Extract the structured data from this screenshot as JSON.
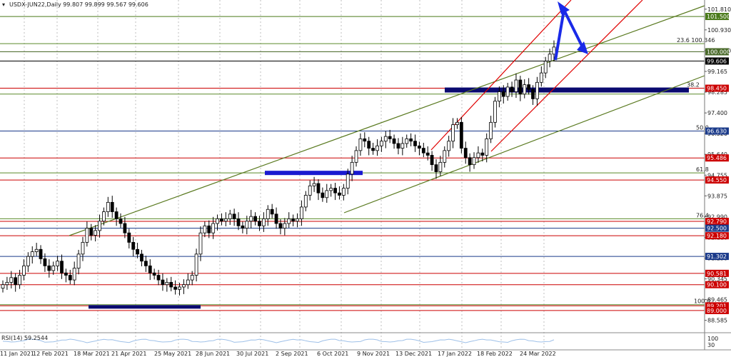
{
  "header": {
    "symbol_info": "USDX-JUN22,Daily  99.807 99.899 99.567 99.606"
  },
  "indicator": {
    "label": "RSI(14) 59.2544",
    "levels": [
      "100",
      "30"
    ]
  },
  "chart_data": {
    "type": "candlestick",
    "symbol": "USDX-JUN22",
    "timeframe": "Daily",
    "ohlc_last": {
      "open": 99.807,
      "high": 99.899,
      "low": 99.567,
      "close": 99.606
    },
    "x_tick_labels": [
      "11 Jan 2021",
      "12 Feb 2021",
      "18 Mar 2021",
      "21 Apr 2021",
      "25 May 2021",
      "28 Jun 2021",
      "30 Jul 2021",
      "2 Sep 2021",
      "6 Oct 2021",
      "9 Nov 2021",
      "13 Dec 2021",
      "17 Jan 2022",
      "18 Feb 2022",
      "24 Mar 2022"
    ],
    "y_tick_labels": [
      "101.810",
      "100.930",
      "100.050",
      "99.165",
      "98.285",
      "97.400",
      "96.520",
      "95.640",
      "94.755",
      "93.875",
      "92.990",
      "92.110",
      "91.230",
      "90.345",
      "89.465",
      "88.585"
    ],
    "ylim": [
      88.3,
      102.2
    ],
    "close_series": [
      90.1,
      90.2,
      90.4,
      90.1,
      90.5,
      90.9,
      91.3,
      91.5,
      91.6,
      91.2,
      90.9,
      90.7,
      90.9,
      91.1,
      90.6,
      90.5,
      90.3,
      90.8,
      91.4,
      91.9,
      92.5,
      92.2,
      92.4,
      92.8,
      93.2,
      93.6,
      93.2,
      92.9,
      92.7,
      92.3,
      91.9,
      91.6,
      91.4,
      91.1,
      90.9,
      90.6,
      90.5,
      90.3,
      90.1,
      90.2,
      90.0,
      89.9,
      90.0,
      90.1,
      90.3,
      90.5,
      91.4,
      92.3,
      92.6,
      92.3,
      92.7,
      92.9,
      92.8,
      92.9,
      93.1,
      92.9,
      92.6,
      92.5,
      92.8,
      93.0,
      92.8,
      92.6,
      92.9,
      93.3,
      93.1,
      92.7,
      92.5,
      92.7,
      92.9,
      92.8,
      92.9,
      93.4,
      93.9,
      94.3,
      94.4,
      94.0,
      93.8,
      94.1,
      94.2,
      94.0,
      93.9,
      94.2,
      94.8,
      95.3,
      95.8,
      96.3,
      96.2,
      95.9,
      95.8,
      96.0,
      96.2,
      96.4,
      96.3,
      96.1,
      95.9,
      96.1,
      96.3,
      96.2,
      96.0,
      95.9,
      95.7,
      95.6,
      95.2,
      94.9,
      95.3,
      95.8,
      96.2,
      96.9,
      97.0,
      95.9,
      95.5,
      95.2,
      95.5,
      95.7,
      95.6,
      96.3,
      97.0,
      97.9,
      98.3,
      98.1,
      98.5,
      98.3,
      98.8,
      98.2,
      98.6,
      98.4,
      98.0,
      98.7,
      99.1,
      99.6,
      99.9,
      100.2
    ],
    "horizontal_levels": [
      {
        "label": "101.500",
        "value": 101.5,
        "color": "#4a7a1a",
        "boxed": true
      },
      {
        "label": "100.000",
        "value": 100.0,
        "color": "#4a6a2a",
        "boxed": true
      },
      {
        "label": "99.606",
        "value": 99.606,
        "color": "#000000",
        "boxed": true
      },
      {
        "label": "98.450",
        "value": 98.45,
        "color": "#cc0000",
        "boxed": true
      },
      {
        "label": "96.630",
        "value": 96.63,
        "color": "#1a3a8a",
        "boxed": true
      },
      {
        "label": "95.486",
        "value": 95.486,
        "color": "#cc0000",
        "boxed": true
      },
      {
        "label": "94.550",
        "value": 94.55,
        "color": "#cc0000",
        "boxed": true
      },
      {
        "label": "92.790",
        "value": 92.79,
        "color": "#cc0000",
        "boxed": true
      },
      {
        "label": "92.500",
        "value": 92.5,
        "color": "#1a3a8a",
        "boxed": true
      },
      {
        "label": "92.180",
        "value": 92.18,
        "color": "#cc0000",
        "boxed": true
      },
      {
        "label": "91.302",
        "value": 91.302,
        "color": "#1a3a8a",
        "boxed": true
      },
      {
        "label": "90.581",
        "value": 90.581,
        "color": "#cc0000",
        "boxed": true
      },
      {
        "label": "90.100",
        "value": 90.1,
        "color": "#cc0000",
        "boxed": true
      },
      {
        "label": "89.201",
        "value": 89.201,
        "color": "#cc0000",
        "boxed": true
      },
      {
        "label": "89.000",
        "value": 89.0,
        "color": "#cc0000",
        "boxed": true
      }
    ],
    "fib_labels": [
      {
        "label": "23.6 100.346",
        "value": 100.346
      },
      {
        "label": "38.2",
        "value": 98.45
      },
      {
        "label": "50.0",
        "value": 96.63
      },
      {
        "label": "61.8",
        "value": 94.85
      },
      {
        "label": "76.4",
        "value": 92.9
      },
      {
        "label": "100.0",
        "value": 89.25
      }
    ]
  }
}
